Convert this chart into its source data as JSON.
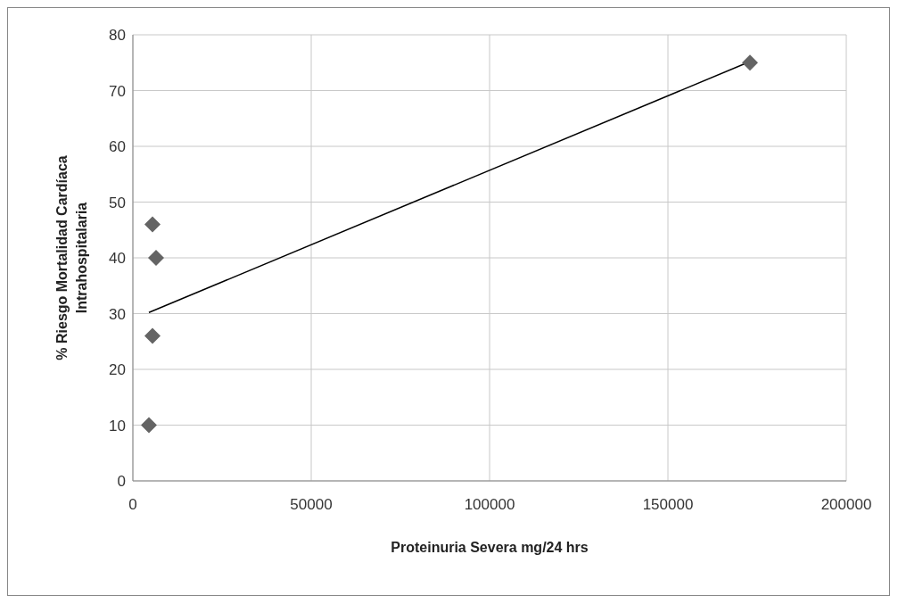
{
  "chart_data": {
    "type": "scatter",
    "xlabel": "Proteinuria Severa mg/24 hrs",
    "ylabel": "% Riesgo Mortalidad Cardíaca Intrahospitalaria",
    "series": [
      {
        "color": "#646464",
        "marker": "diamond",
        "x": [
          4500,
          5500,
          6500,
          5500,
          173000
        ],
        "values": [
          10,
          26,
          40,
          46,
          75
        ]
      },
      {
        "type": "line",
        "color": "#000000",
        "marker": "none",
        "x": [
          4500,
          173000
        ],
        "values": [
          30.2,
          75.2
        ]
      }
    ],
    "xlim": [
      0,
      200000
    ],
    "xticks": [
      0,
      50000,
      100000,
      150000,
      200000
    ],
    "ylim": [
      0,
      80
    ],
    "yticks": [
      0,
      10,
      20,
      30,
      40,
      50,
      60,
      70,
      80
    ],
    "grid": true
  }
}
